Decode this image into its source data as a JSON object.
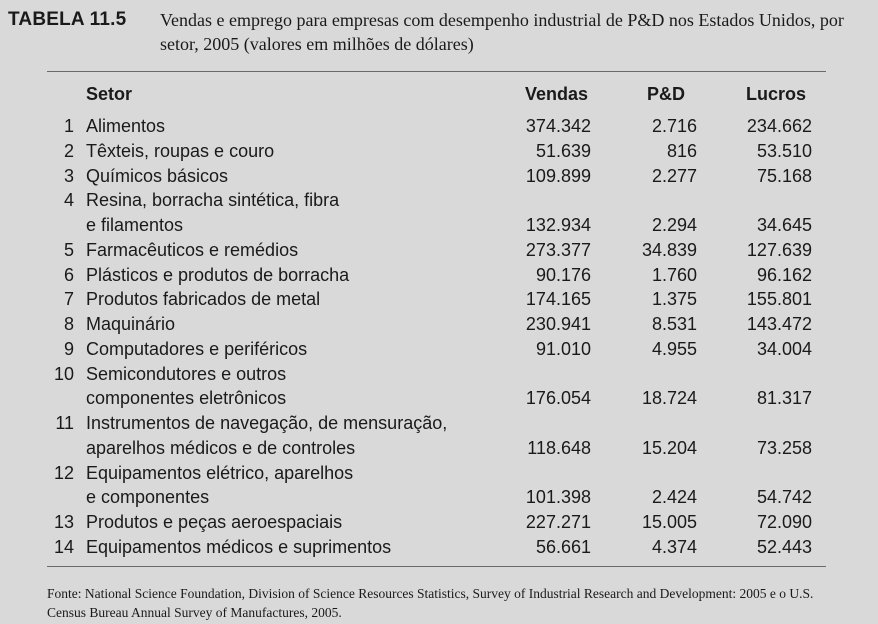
{
  "table": {
    "label": "TABELA 11.5",
    "caption": "Vendas e emprego para empresas com desempenho industrial de P&D nos Estados Unidos, por setor, 2005 (valores em milhões de dólares)",
    "headers": {
      "setor": "Setor",
      "vendas": "Vendas",
      "pd": "P&D",
      "lucros": "Lucros"
    },
    "rows": [
      {
        "index": "1",
        "lines": [
          "Alimentos"
        ],
        "vendas": "374.342",
        "pd": "2.716",
        "lucros": "234.662"
      },
      {
        "index": "2",
        "lines": [
          "Têxteis, roupas e couro"
        ],
        "vendas": "51.639",
        "pd": "816",
        "lucros": "53.510"
      },
      {
        "index": "3",
        "lines": [
          "Químicos básicos"
        ],
        "vendas": "109.899",
        "pd": "2.277",
        "lucros": "75.168"
      },
      {
        "index": "4",
        "lines": [
          "Resina, borracha sintética, fibra",
          "e filamentos"
        ],
        "vendas": "132.934",
        "pd": "2.294",
        "lucros": "34.645"
      },
      {
        "index": "5",
        "lines": [
          "Farmacêuticos e remédios"
        ],
        "vendas": "273.377",
        "pd": "34.839",
        "lucros": "127.639"
      },
      {
        "index": "6",
        "lines": [
          "Plásticos e produtos de borracha"
        ],
        "vendas": "90.176",
        "pd": "1.760",
        "lucros": "96.162"
      },
      {
        "index": "7",
        "lines": [
          "Produtos fabricados de metal"
        ],
        "vendas": "174.165",
        "pd": "1.375",
        "lucros": "155.801"
      },
      {
        "index": "8",
        "lines": [
          "Maquinário"
        ],
        "vendas": "230.941",
        "pd": "8.531",
        "lucros": "143.472"
      },
      {
        "index": "9",
        "lines": [
          "Computadores e periféricos"
        ],
        "vendas": "91.010",
        "pd": "4.955",
        "lucros": "34.004"
      },
      {
        "index": "10",
        "lines": [
          "Semicondutores e outros",
          "componentes eletrônicos"
        ],
        "vendas": "176.054",
        "pd": "18.724",
        "lucros": "81.317"
      },
      {
        "index": "11",
        "lines": [
          "Instrumentos de navegação, de mensuração,",
          "aparelhos médicos e de controles"
        ],
        "vendas": "118.648",
        "pd": "15.204",
        "lucros": "73.258"
      },
      {
        "index": "12",
        "lines": [
          "Equipamentos elétrico, aparelhos",
          "e componentes"
        ],
        "vendas": "101.398",
        "pd": "2.424",
        "lucros": "54.742"
      },
      {
        "index": "13",
        "lines": [
          "Produtos e peças aeroespaciais"
        ],
        "vendas": "227.271",
        "pd": "15.005",
        "lucros": "72.090"
      },
      {
        "index": "14",
        "lines": [
          "Equipamentos médicos e suprimentos"
        ],
        "vendas": "56.661",
        "pd": "4.374",
        "lucros": "52.443"
      }
    ],
    "source": "Fonte: National Science Foundation, Division of Science Resources Statistics, Survey of Industrial Research and Development: 2005 e o U.S. Census Bureau Annual Survey of Manufactures, 2005."
  }
}
